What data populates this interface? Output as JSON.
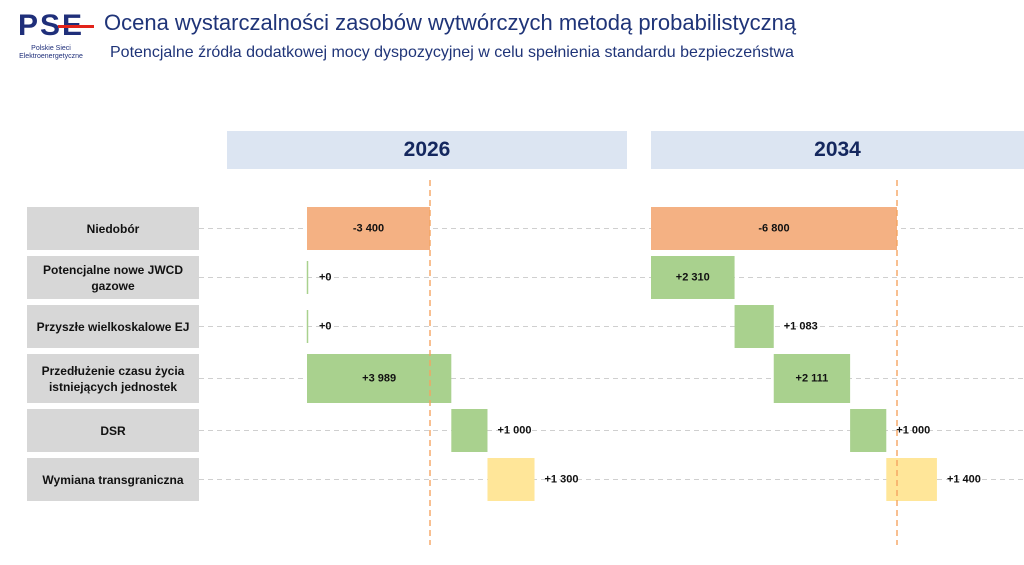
{
  "header": {
    "title": "Ocena wystarczalności zasobów wytwórczych metodą probabilistyczną",
    "subtitle": "Potencjalne źródła dodatkowej mocy dyspozycyjnej w celu spełnienia standardu bezpieczeństwa"
  },
  "logo": {
    "text": "PSE",
    "sub_line1": "Polskie Sieci",
    "sub_line2": "Elektroenergetyczne"
  },
  "chart_data": [
    {
      "type": "bar",
      "title": "2026",
      "categories": [
        "Niedobór",
        "Potencjalne nowe JWCD gazowe",
        "Przyszłe wielkoskalowe EJ",
        "Przedłużenie czasu życia istniejących jednostek",
        "DSR",
        "Wymiana transgraniczna"
      ],
      "values": [
        -3400,
        0,
        0,
        3989,
        1000,
        1300
      ],
      "labels": [
        "-3 400",
        "+0",
        "+0",
        "+3 989",
        "+1 000",
        "+1 300"
      ],
      "colors": [
        "#f4b183",
        "#a9d18e",
        "#a9d18e",
        "#a9d18e",
        "#a9d18e",
        "#ffe699"
      ]
    },
    {
      "type": "bar",
      "title": "2034",
      "categories": [
        "Niedobór",
        "Potencjalne nowe JWCD gazowe",
        "Przyszłe wielkoskalowe EJ",
        "Przedłużenie czasu życia istniejących jednostek",
        "DSR",
        "Wymiana transgraniczna"
      ],
      "values": [
        -6800,
        2310,
        1083,
        2111,
        1000,
        1400
      ],
      "labels": [
        "-6 800",
        "+2 310",
        "+1 083",
        "+2 111",
        "+1 000",
        "+1 400"
      ],
      "colors": [
        "#f4b183",
        "#a9d18e",
        "#a9d18e",
        "#a9d18e",
        "#a9d18e",
        "#ffe699"
      ]
    }
  ],
  "rows": [
    {
      "label": "Niedobór"
    },
    {
      "label": "Potencjalne nowe JWCD gazowe"
    },
    {
      "label": "Przyszłe wielkoskalowe EJ"
    },
    {
      "label": "Przedłużenie czasu życia istniejących jednostek"
    },
    {
      "label": "DSR"
    },
    {
      "label": "Wymiana transgraniczna"
    }
  ],
  "colors": {
    "title": "#1f3478",
    "header_bg": "#dce5f2",
    "label_bg": "#d7d7d7",
    "deficit": "#f4b183",
    "dispatchable": "#a9d18e",
    "interconnection": "#ffe699",
    "target_line": "#f4a460"
  }
}
